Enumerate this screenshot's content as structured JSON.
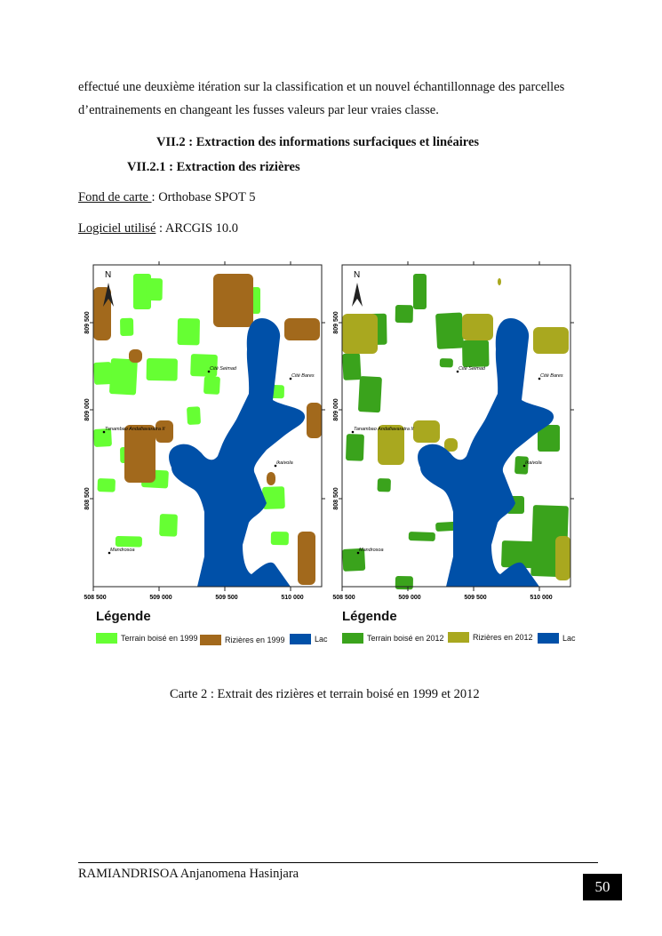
{
  "body": {
    "paragraph_line1": "effectué une deuxième itération sur la classification et un nouvel échantillonnage des parcelles",
    "paragraph_line2": "d’entrainements en changeant les fusses valeurs par leur vraies classe.",
    "heading_section": "VII.2 : Extraction des informations surfaciques et linéaires",
    "heading_subsection": "VII.2.1 : Extraction des rizières",
    "basemap_label": "Fond de carte ",
    "basemap_value": ": Orthobase SPOT 5",
    "software_label": "Logiciel utilisé",
    "software_value": " : ARCGIS 10.0",
    "caption": "Carte 2 : Extrait des rizières et terrain boisé en 1999 et 2012"
  },
  "maps": {
    "north": "N",
    "x_ticks": [
      "508 500",
      "509 000",
      "509 500",
      "510 000"
    ],
    "y_ticks": [
      "809 500",
      "809 000",
      "808 500"
    ],
    "places": [
      "Cité Seimad",
      "Cité Bares",
      "Tanambao Andafiavaratra II",
      "Ikaivola",
      "Mandrosoa"
    ],
    "legend_title": "Légende",
    "left": {
      "forest": "Terrain boisé en 1999",
      "rice": "Rizières en 1999",
      "lake": "Lac"
    },
    "right": {
      "forest": "Terrain boisé en 2012",
      "rice": "Rizières en 2012",
      "lake": "Lac"
    },
    "colors": {
      "lake": "#0050a8",
      "forest_1999": "#66ff33",
      "rice_1999": "#a2691c",
      "forest_2012": "#3aa31c",
      "rice_2012": "#a9a81f"
    }
  },
  "footer": {
    "author": "RAMIANDRISOA Anjanomena Hasinjara",
    "page_number": "50"
  }
}
